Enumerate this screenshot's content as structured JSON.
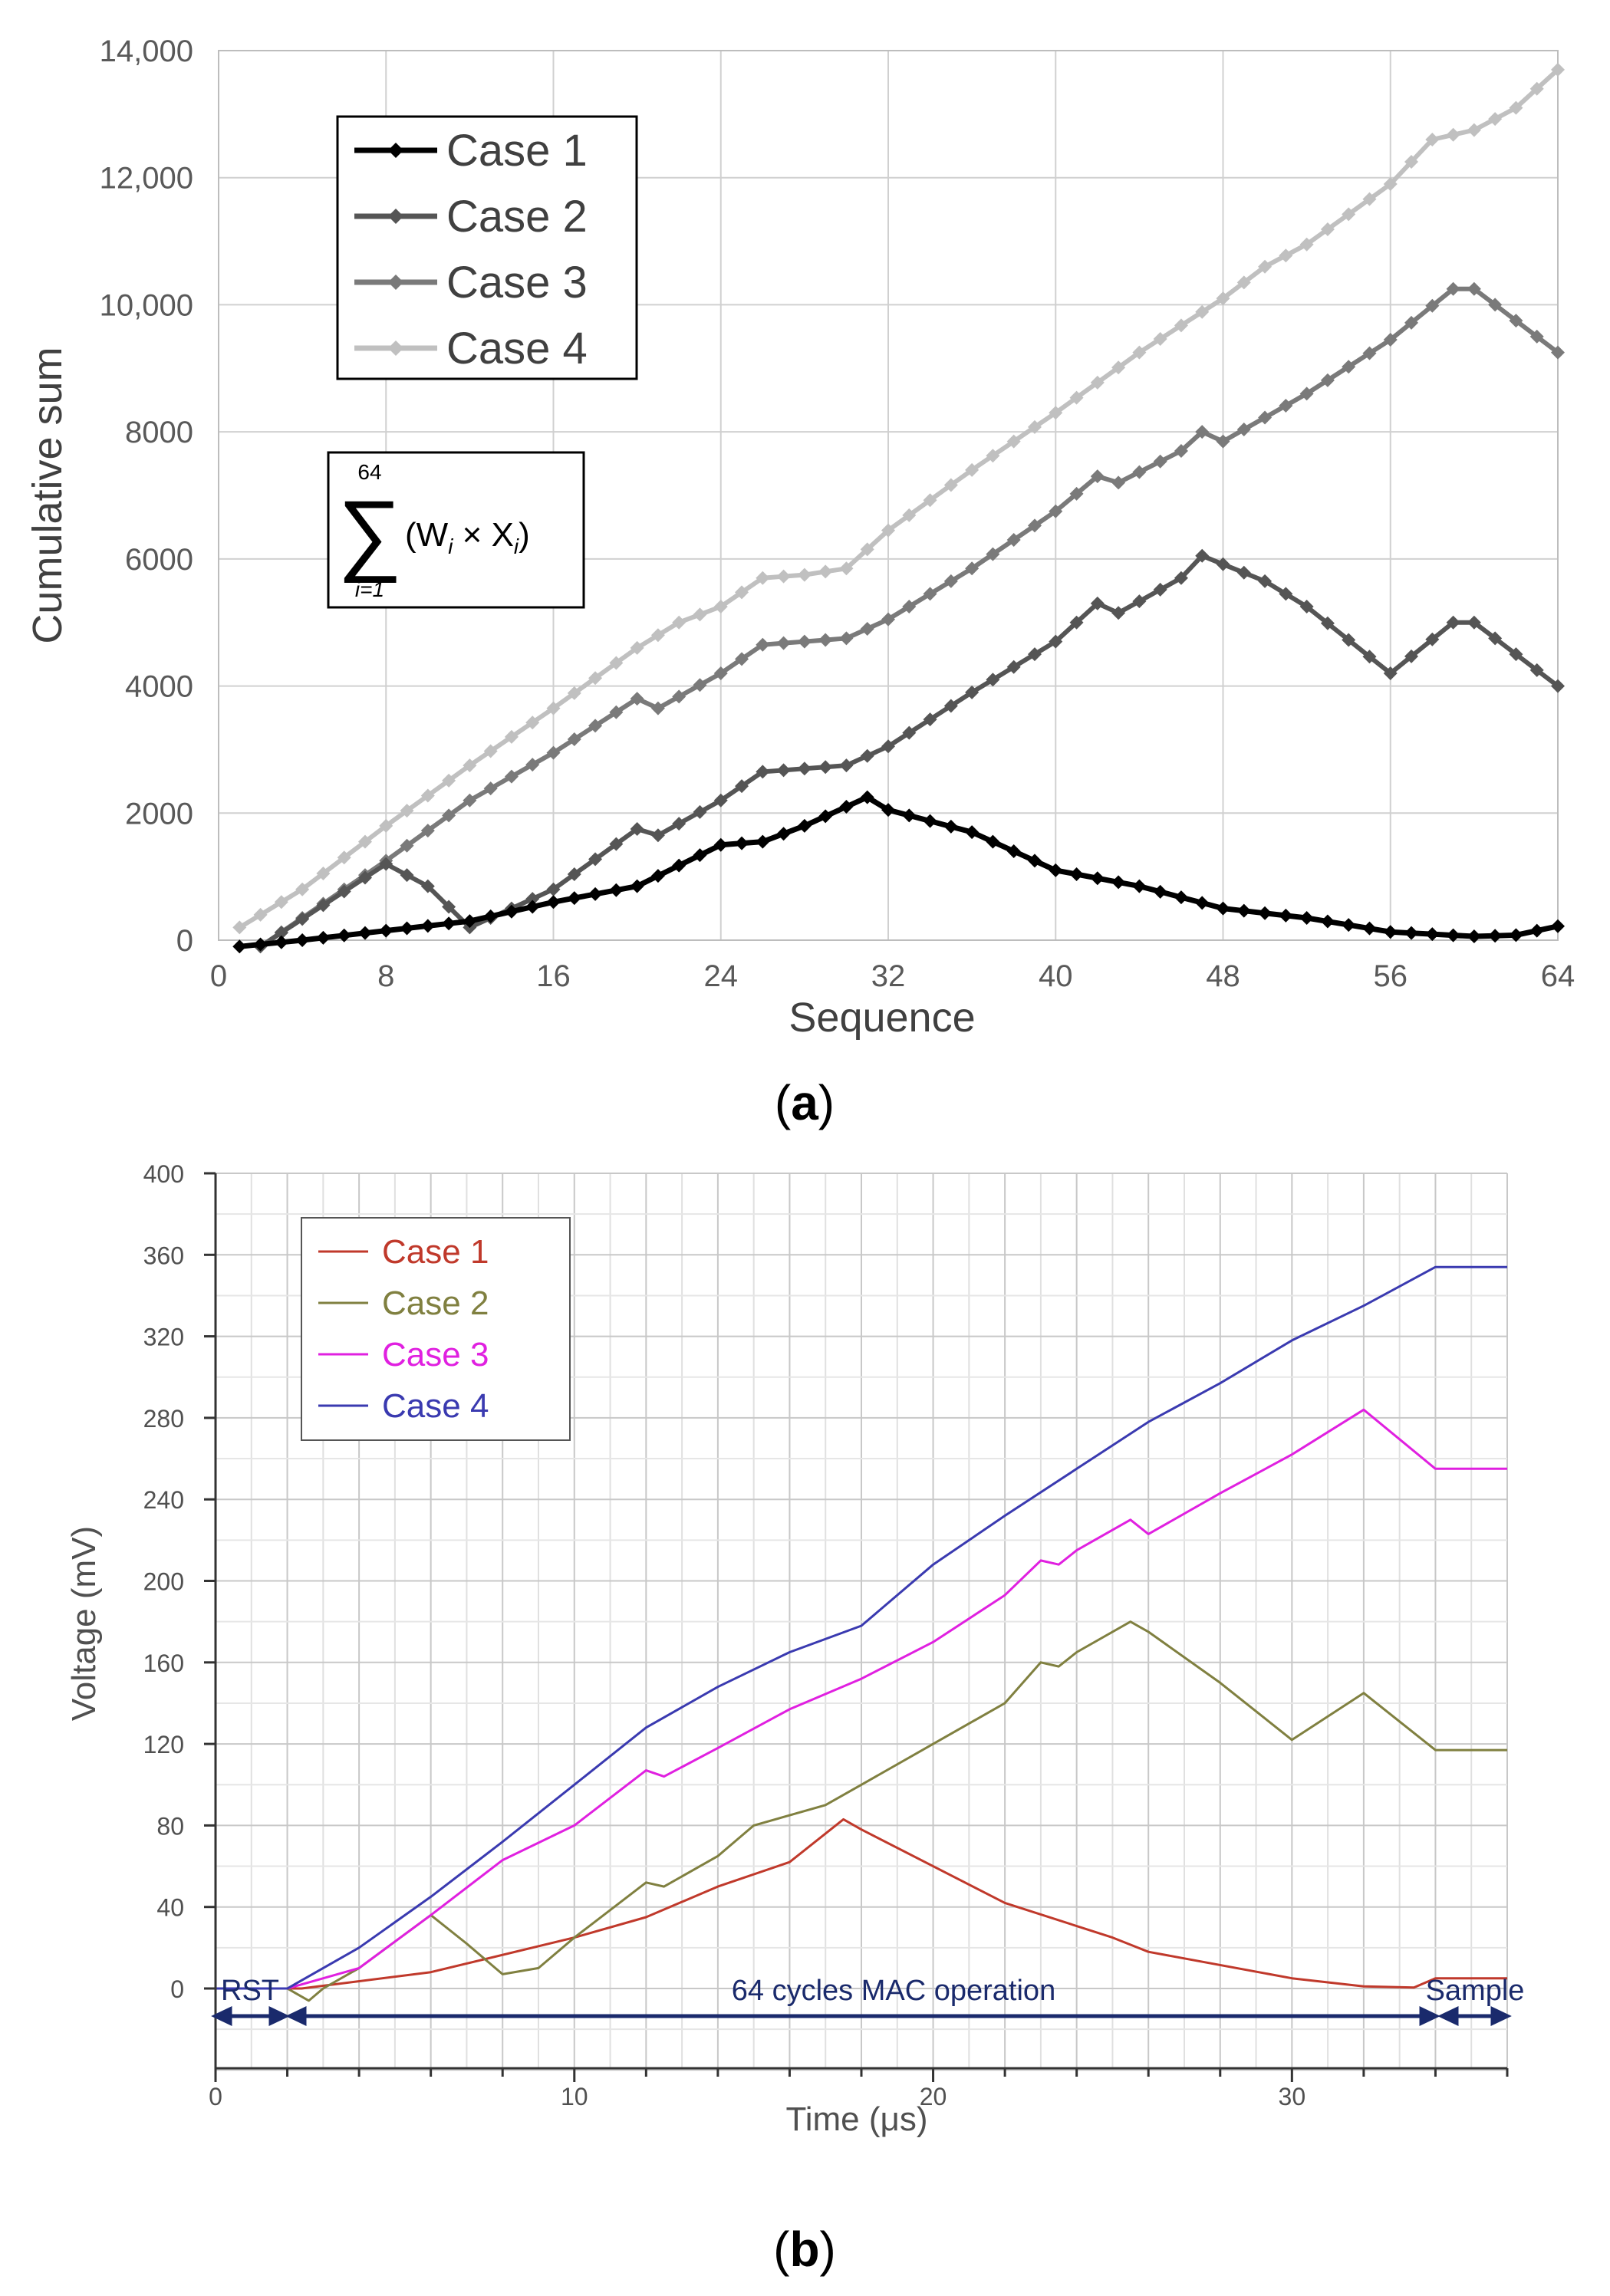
{
  "chart_data": [
    {
      "type": "line",
      "panel_label": "a",
      "xlabel": "Sequence",
      "ylabel": "Cumulative sum",
      "xlim": [
        0,
        64
      ],
      "ylim": [
        0,
        14000
      ],
      "x_ticks": [
        "0",
        "8",
        "16",
        "24",
        "32",
        "40",
        "48",
        "56",
        "64"
      ],
      "y_ticks": [
        "0",
        "2000",
        "4000",
        "6000",
        "8000",
        "10,000",
        "12,000",
        "14,000"
      ],
      "grid": true,
      "legend_position": "top-left",
      "formula": {
        "upper": "64",
        "lower": "i=1",
        "body": "(W",
        "w_sub": "i",
        "times": " × X",
        "x_sub": "i",
        "close": ")"
      },
      "series": [
        {
          "name": "Case 1",
          "color": "#000000",
          "points": [
            [
              1,
              -100
            ],
            [
              4,
              0
            ],
            [
              8,
              150
            ],
            [
              12,
              300
            ],
            [
              16,
              600
            ],
            [
              20,
              850
            ],
            [
              24,
              1500
            ],
            [
              26,
              1550
            ],
            [
              28,
              1800
            ],
            [
              31,
              2250
            ],
            [
              32,
              2050
            ],
            [
              36,
              1700
            ],
            [
              40,
              1100
            ],
            [
              44,
              850
            ],
            [
              48,
              500
            ],
            [
              52,
              350
            ],
            [
              56,
              130
            ],
            [
              60,
              60
            ],
            [
              62,
              80
            ],
            [
              64,
              220
            ]
          ]
        },
        {
          "name": "Case 2",
          "color": "#555555",
          "points": [
            [
              2,
              -100
            ],
            [
              8,
              1200
            ],
            [
              10,
              850
            ],
            [
              12,
              200
            ],
            [
              16,
              800
            ],
            [
              20,
              1750
            ],
            [
              21,
              1650
            ],
            [
              24,
              2200
            ],
            [
              26,
              2650
            ],
            [
              30,
              2750
            ],
            [
              32,
              3050
            ],
            [
              36,
              3900
            ],
            [
              40,
              4700
            ],
            [
              42,
              5300
            ],
            [
              43,
              5150
            ],
            [
              46,
              5700
            ],
            [
              47,
              6050
            ],
            [
              50,
              5650
            ],
            [
              52,
              5250
            ],
            [
              56,
              4200
            ],
            [
              59,
              5000
            ],
            [
              60,
              5000
            ],
            [
              64,
              4000
            ]
          ]
        },
        {
          "name": "Case 3",
          "color": "#7a7a7a",
          "points": [
            [
              2,
              -100
            ],
            [
              8,
              1250
            ],
            [
              12,
              2200
            ],
            [
              16,
              2950
            ],
            [
              20,
              3800
            ],
            [
              21,
              3650
            ],
            [
              24,
              4200
            ],
            [
              26,
              4650
            ],
            [
              30,
              4750
            ],
            [
              32,
              5050
            ],
            [
              36,
              5850
            ],
            [
              40,
              6750
            ],
            [
              42,
              7300
            ],
            [
              43,
              7200
            ],
            [
              46,
              7700
            ],
            [
              47,
              8000
            ],
            [
              48,
              7850
            ],
            [
              52,
              8600
            ],
            [
              56,
              9450
            ],
            [
              59,
              10250
            ],
            [
              60,
              10250
            ],
            [
              64,
              9250
            ]
          ]
        },
        {
          "name": "Case 4",
          "color": "#c0c0c0",
          "points": [
            [
              1,
              200
            ],
            [
              4,
              800
            ],
            [
              8,
              1800
            ],
            [
              12,
              2750
            ],
            [
              16,
              3650
            ],
            [
              20,
              4600
            ],
            [
              22,
              5000
            ],
            [
              24,
              5250
            ],
            [
              26,
              5700
            ],
            [
              28,
              5750
            ],
            [
              30,
              5850
            ],
            [
              32,
              6450
            ],
            [
              36,
              7400
            ],
            [
              40,
              8300
            ],
            [
              44,
              9250
            ],
            [
              48,
              10100
            ],
            [
              50,
              10600
            ],
            [
              52,
              10950
            ],
            [
              56,
              11900
            ],
            [
              58,
              12600
            ],
            [
              60,
              12750
            ],
            [
              62,
              13100
            ],
            [
              64,
              13700
            ]
          ]
        }
      ]
    },
    {
      "type": "line",
      "panel_label": "b",
      "xlabel": "Time (μs)",
      "ylabel": "Voltage (mV)",
      "xlim": [
        0,
        36
      ],
      "ylim": [
        -40,
        400
      ],
      "x_ticks": [
        "0",
        "10",
        "20",
        "30"
      ],
      "y_ticks": [
        "0",
        "40",
        "80",
        "120",
        "160",
        "200",
        "240",
        "280",
        "320",
        "360",
        "400"
      ],
      "grid": true,
      "legend_position": "top-left",
      "annotations": [
        "RST",
        "64 cycles MAC operation",
        "Sample"
      ],
      "series": [
        {
          "name": "Case 1",
          "color": "#c0392b",
          "points": [
            [
              0,
              0
            ],
            [
              2,
              0
            ],
            [
              2.4,
              0
            ],
            [
              6,
              8
            ],
            [
              10,
              25
            ],
            [
              12,
              35
            ],
            [
              14,
              50
            ],
            [
              16,
              62
            ],
            [
              17.5,
              83
            ],
            [
              18,
              78
            ],
            [
              22,
              42
            ],
            [
              25,
              25
            ],
            [
              26,
              18
            ],
            [
              30,
              5
            ],
            [
              32,
              1
            ],
            [
              33.4,
              0.5
            ],
            [
              34,
              5
            ],
            [
              36,
              5
            ]
          ]
        },
        {
          "name": "Case 2",
          "color": "#808040",
          "points": [
            [
              0,
              0
            ],
            [
              2,
              0
            ],
            [
              2.6,
              -6
            ],
            [
              3,
              0
            ],
            [
              4,
              10
            ],
            [
              6,
              36
            ],
            [
              7,
              22
            ],
            [
              8,
              7
            ],
            [
              9,
              10
            ],
            [
              10,
              25
            ],
            [
              12,
              52
            ],
            [
              12.5,
              50
            ],
            [
              14,
              65
            ],
            [
              15,
              80
            ],
            [
              17,
              90
            ],
            [
              18,
              100
            ],
            [
              20,
              120
            ],
            [
              22,
              140
            ],
            [
              23,
              160
            ],
            [
              23.5,
              158
            ],
            [
              24,
              165
            ],
            [
              25.5,
              180
            ],
            [
              26,
              175
            ],
            [
              28,
              150
            ],
            [
              30,
              122
            ],
            [
              32,
              145
            ],
            [
              34,
              117
            ],
            [
              36,
              117
            ]
          ]
        },
        {
          "name": "Case 3",
          "color": "#e020e0",
          "points": [
            [
              0,
              0
            ],
            [
              2,
              0
            ],
            [
              4,
              10
            ],
            [
              6,
              36
            ],
            [
              8,
              63
            ],
            [
              10,
              80
            ],
            [
              12,
              107
            ],
            [
              12.5,
              104
            ],
            [
              14,
              118
            ],
            [
              16,
              137
            ],
            [
              18,
              152
            ],
            [
              20,
              170
            ],
            [
              22,
              193
            ],
            [
              23,
              210
            ],
            [
              23.5,
              208
            ],
            [
              24,
              215
            ],
            [
              25.5,
              230
            ],
            [
              26,
              223
            ],
            [
              28,
              243
            ],
            [
              30,
              262
            ],
            [
              32,
              284
            ],
            [
              34,
              255
            ],
            [
              36,
              255
            ]
          ]
        },
        {
          "name": "Case 4",
          "color": "#3a3ab0",
          "points": [
            [
              0,
              0
            ],
            [
              2,
              0
            ],
            [
              4,
              20
            ],
            [
              6,
              45
            ],
            [
              8,
              72
            ],
            [
              10,
              100
            ],
            [
              12,
              128
            ],
            [
              14,
              148
            ],
            [
              16,
              165
            ],
            [
              18,
              178
            ],
            [
              20,
              208
            ],
            [
              22,
              232
            ],
            [
              24,
              255
            ],
            [
              26,
              278
            ],
            [
              28,
              297
            ],
            [
              30,
              318
            ],
            [
              32,
              335
            ],
            [
              34,
              354
            ],
            [
              36,
              354
            ]
          ]
        }
      ]
    }
  ]
}
